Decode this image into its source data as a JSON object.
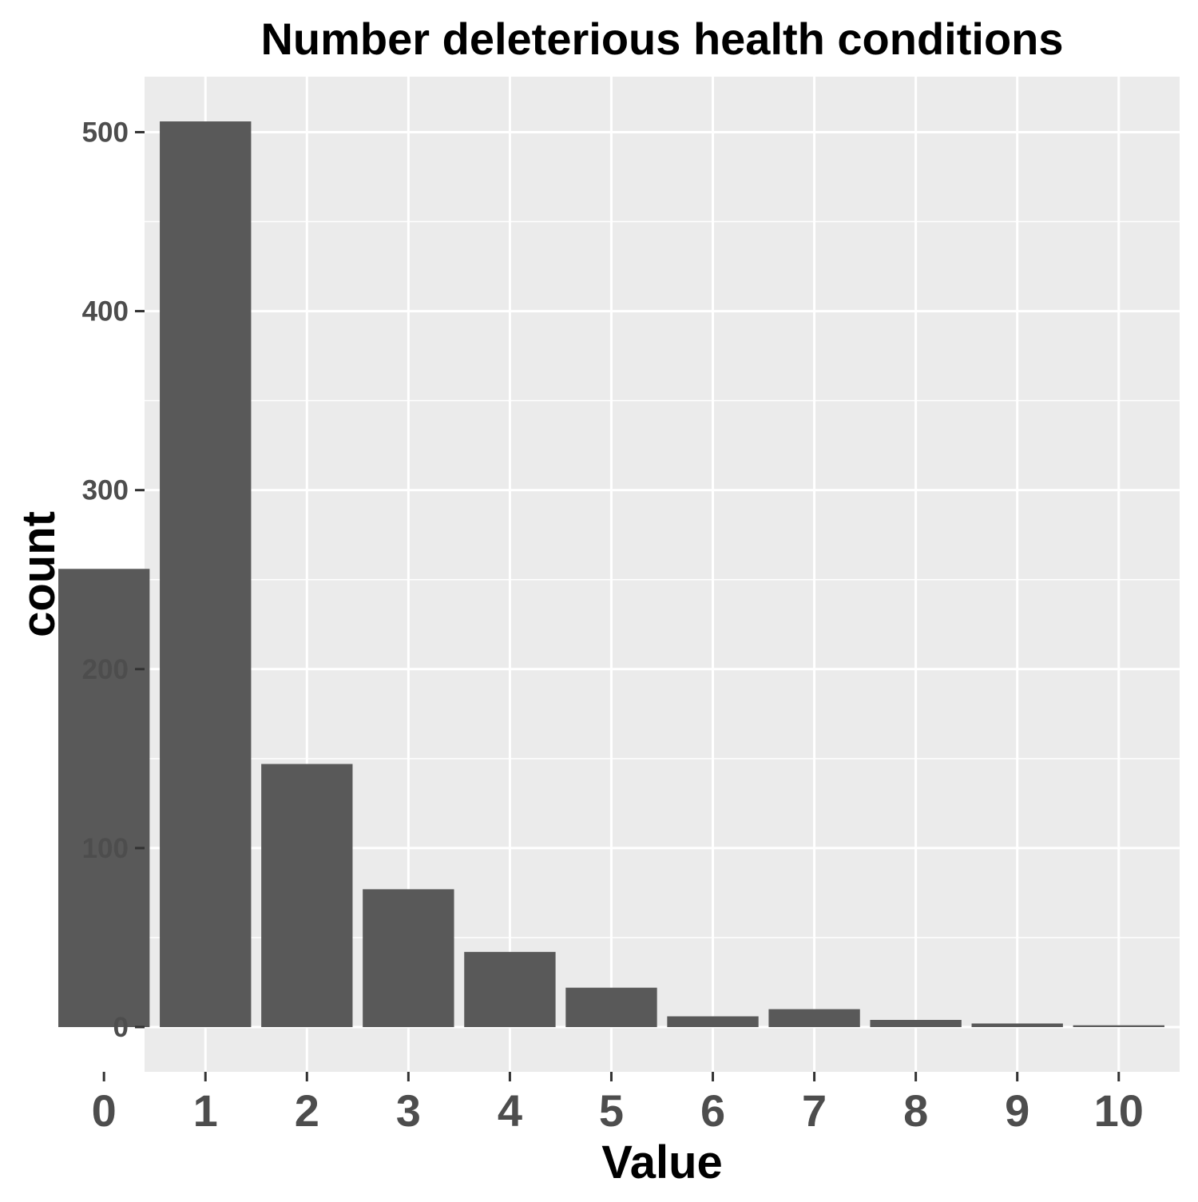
{
  "chart_data": {
    "type": "bar",
    "title": "Number deleterious health conditions",
    "xlabel": "Value",
    "ylabel": "count",
    "categories": [
      "0",
      "1",
      "2",
      "3",
      "4",
      "5",
      "6",
      "7",
      "8",
      "9",
      "10"
    ],
    "values": [
      256,
      506,
      147,
      77,
      42,
      22,
      6,
      10,
      4,
      2,
      1
    ],
    "y_ticks": [
      "0",
      "100",
      "200",
      "300",
      "400",
      "500"
    ],
    "y_tick_values": [
      0,
      100,
      200,
      300,
      400,
      500
    ],
    "ylim": [
      -25,
      531
    ],
    "grid": true,
    "legend": "none",
    "colors": {
      "bar": "#595959",
      "panel": "#ebebeb",
      "grid": "#ffffff",
      "tick_text": "#4d4d4d",
      "title_text": "#000000"
    }
  }
}
